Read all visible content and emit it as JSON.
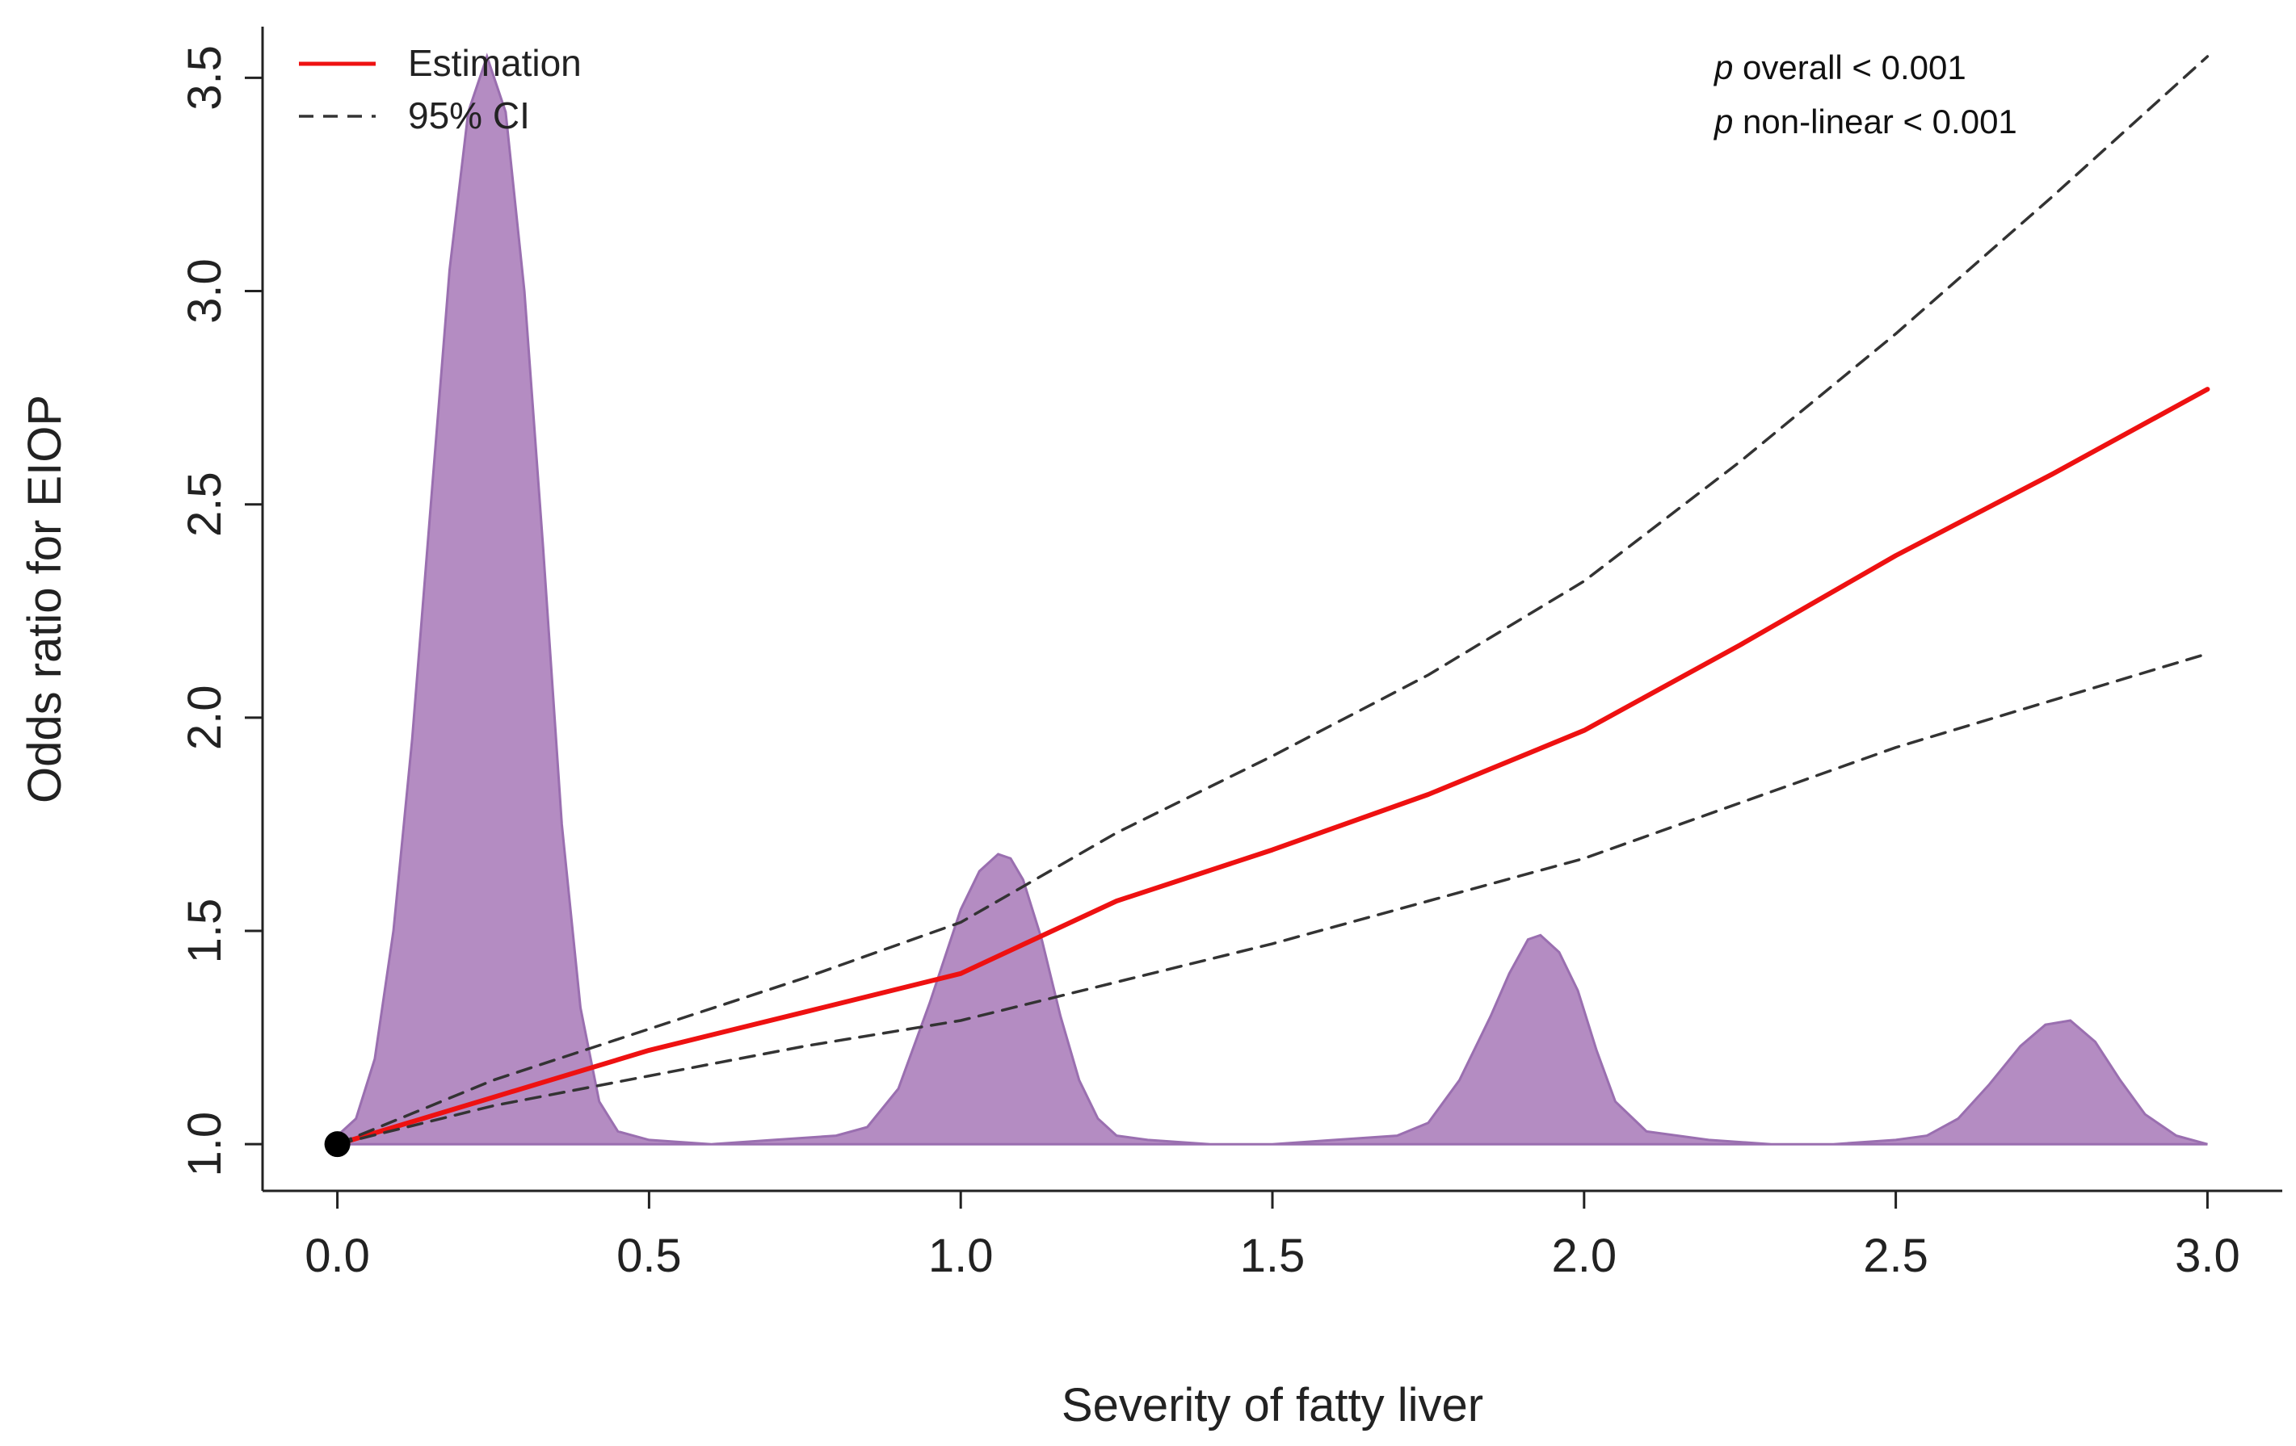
{
  "chart_data": {
    "type": "line",
    "title": "",
    "xlabel": "Severity of fatty liver",
    "ylabel": "Odds ratio for EIOP",
    "xlim": [
      -0.12,
      3.12
    ],
    "ylim": [
      0.9,
      3.62
    ],
    "x_ticks": [
      0.0,
      0.5,
      1.0,
      1.5,
      2.0,
      2.5,
      3.0
    ],
    "x_tick_labels": [
      "0.0",
      "0.5",
      "1.0",
      "1.5",
      "2.0",
      "2.5",
      "3.0"
    ],
    "y_ticks": [
      1.0,
      1.5,
      2.0,
      2.5,
      3.0,
      3.5
    ],
    "y_tick_labels": [
      "1.0",
      "1.5",
      "2.0",
      "2.5",
      "3.0",
      "3.5"
    ],
    "grid": false,
    "legend_position": "top-left",
    "legend": {
      "estimation_label": "Estimation",
      "ci_label": "95% CI"
    },
    "annotations": {
      "p_symbol": "p",
      "p_overall_text": " overall < 0.001",
      "p_nonlinear_text": " non-linear < 0.001"
    },
    "reference_point": {
      "x": 0.0,
      "y": 1.0
    },
    "series": [
      {
        "name": "Estimation",
        "color": "#ee1111",
        "style": "solid",
        "x": [
          0.0,
          0.25,
          0.5,
          0.75,
          1.0,
          1.25,
          1.5,
          1.75,
          2.0,
          2.25,
          2.5,
          2.75,
          3.0
        ],
        "y": [
          1.0,
          1.11,
          1.22,
          1.31,
          1.4,
          1.57,
          1.69,
          1.82,
          1.97,
          2.17,
          2.38,
          2.57,
          2.77
        ]
      },
      {
        "name": "95% CI upper",
        "color": "#333333",
        "style": "dashed",
        "x": [
          0.0,
          0.25,
          0.5,
          0.75,
          1.0,
          1.25,
          1.5,
          1.75,
          2.0,
          2.25,
          2.5,
          2.75,
          3.0
        ],
        "y": [
          1.0,
          1.15,
          1.27,
          1.39,
          1.52,
          1.73,
          1.91,
          2.1,
          2.32,
          2.6,
          2.9,
          3.22,
          3.55
        ]
      },
      {
        "name": "95% CI lower",
        "color": "#333333",
        "style": "dashed",
        "x": [
          0.0,
          0.25,
          0.5,
          0.75,
          1.0,
          1.25,
          1.5,
          1.75,
          2.0,
          2.25,
          2.5,
          2.75,
          3.0
        ],
        "y": [
          1.0,
          1.09,
          1.16,
          1.23,
          1.29,
          1.38,
          1.47,
          1.57,
          1.67,
          1.8,
          1.93,
          2.04,
          2.15
        ]
      }
    ],
    "density": {
      "name": "Distribution density",
      "fill": "#b48cc2",
      "stroke": "#9a6fb0",
      "baseline": 1.0,
      "x": [
        0.0,
        0.03,
        0.06,
        0.09,
        0.12,
        0.15,
        0.18,
        0.21,
        0.24,
        0.27,
        0.3,
        0.33,
        0.36,
        0.39,
        0.42,
        0.45,
        0.5,
        0.6,
        0.7,
        0.8,
        0.85,
        0.9,
        0.95,
        1.0,
        1.03,
        1.06,
        1.08,
        1.1,
        1.13,
        1.16,
        1.19,
        1.22,
        1.25,
        1.3,
        1.4,
        1.5,
        1.6,
        1.7,
        1.75,
        1.8,
        1.85,
        1.88,
        1.91,
        1.93,
        1.96,
        1.99,
        2.02,
        2.05,
        2.1,
        2.2,
        2.3,
        2.4,
        2.5,
        2.55,
        2.6,
        2.65,
        2.7,
        2.74,
        2.78,
        2.82,
        2.86,
        2.9,
        2.95,
        3.0
      ],
      "y": [
        1.02,
        1.06,
        1.2,
        1.5,
        1.95,
        2.5,
        3.05,
        3.42,
        3.55,
        3.42,
        3.0,
        2.4,
        1.75,
        1.32,
        1.1,
        1.03,
        1.01,
        1.0,
        1.01,
        1.02,
        1.04,
        1.13,
        1.33,
        1.55,
        1.64,
        1.68,
        1.67,
        1.62,
        1.48,
        1.3,
        1.15,
        1.06,
        1.02,
        1.01,
        1.0,
        1.0,
        1.01,
        1.02,
        1.05,
        1.15,
        1.3,
        1.4,
        1.48,
        1.49,
        1.45,
        1.36,
        1.22,
        1.1,
        1.03,
        1.01,
        1.0,
        1.0,
        1.01,
        1.02,
        1.06,
        1.14,
        1.23,
        1.28,
        1.29,
        1.24,
        1.15,
        1.07,
        1.02,
        1.0
      ]
    }
  }
}
